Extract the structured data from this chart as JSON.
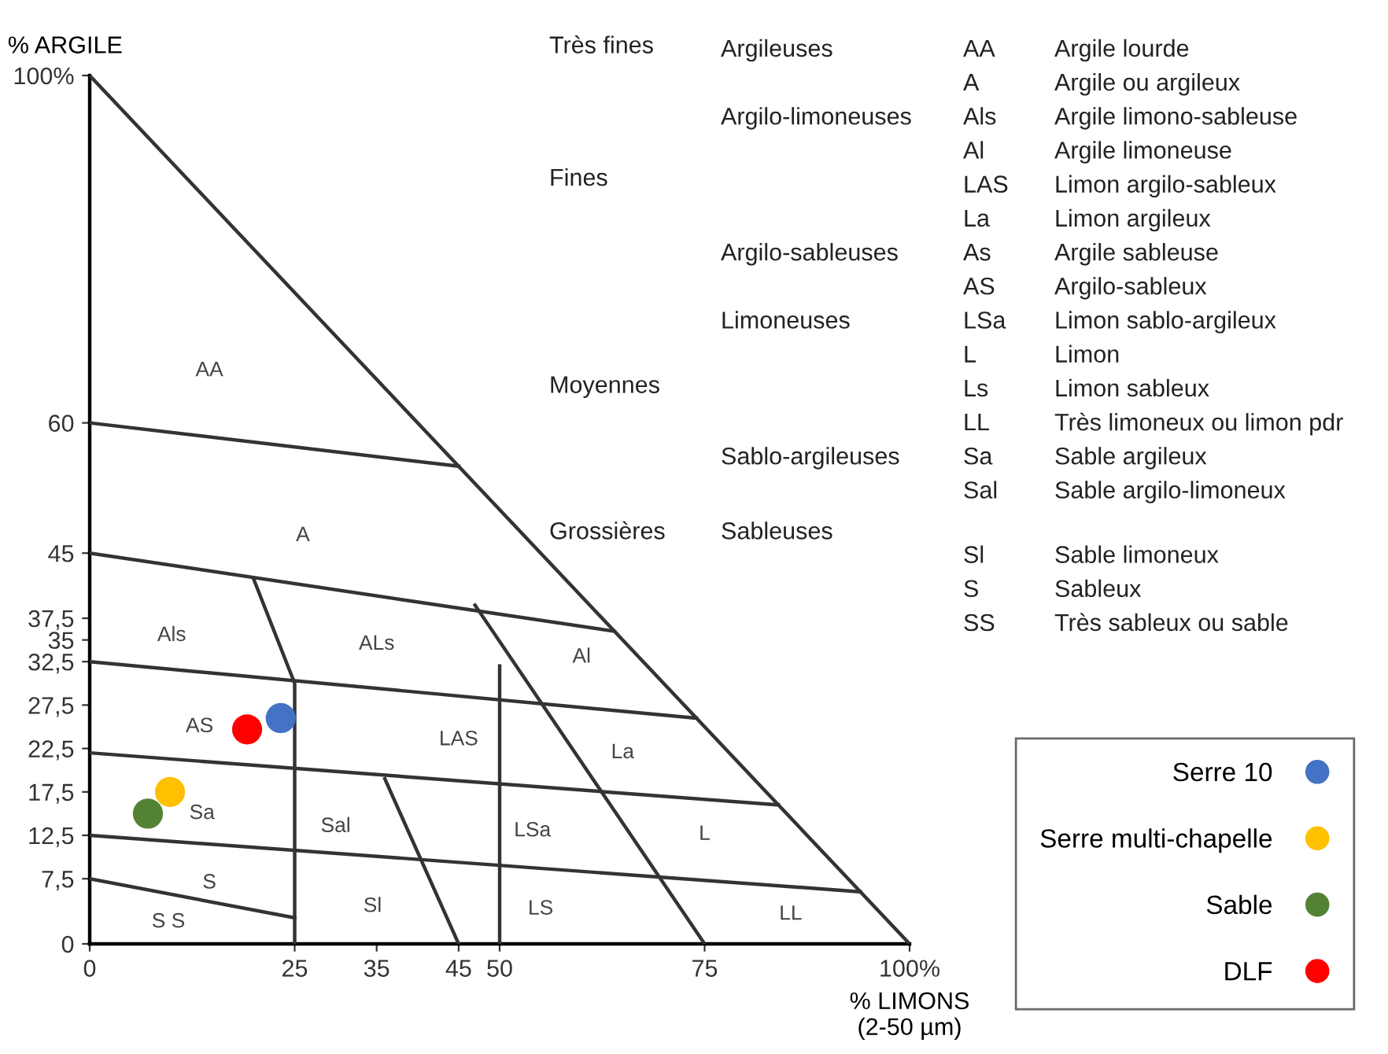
{
  "chart_data": {
    "type": "scatter",
    "xlabel": "% LIMONS\n(2-50 µm)",
    "ylabel": "% ARGILE",
    "xlim": [
      0,
      100
    ],
    "ylim": [
      0,
      100
    ],
    "xticks": [
      0,
      25,
      35,
      45,
      50,
      75,
      {
        "value": 100,
        "label": "100%"
      }
    ],
    "yticks": [
      0,
      {
        "value": 7.5,
        "label": "7,5"
      },
      {
        "value": 12.5,
        "label": "12,5"
      },
      {
        "value": 17.5,
        "label": "17,5"
      },
      {
        "value": 22.5,
        "label": "22,5"
      },
      {
        "value": 27.5,
        "label": "27,5"
      },
      {
        "value": 32.5,
        "label": "32,5"
      },
      35,
      {
        "value": 37.5,
        "label": "37,5"
      },
      45,
      60,
      {
        "value": 100,
        "label": "100%"
      }
    ],
    "grid": false,
    "legend": "bottom right",
    "series": [
      {
        "name": "Serre 10",
        "color": "#4472c4",
        "marker": "circle",
        "x": [
          23.3
        ],
        "values": [
          26
        ]
      },
      {
        "name": "Serre multi-chapelle",
        "color": "#ffc000",
        "marker": "circle",
        "x": [
          9.8
        ],
        "values": [
          17.5
        ]
      },
      {
        "name": "Sable",
        "color": "#548235",
        "marker": "circle",
        "x": [
          7.1
        ],
        "values": [
          15
        ]
      },
      {
        "name": "DLF",
        "color": "#ff0000",
        "marker": "circle",
        "x": [
          19.2
        ],
        "values": [
          24.7
        ]
      },
      {
        "type": "line",
        "color": "#333333",
        "x": [
          0,
          100
        ],
        "values": [
          100,
          0
        ]
      },
      {
        "type": "line",
        "color": "#333333",
        "x": [
          0,
          45
        ],
        "values": [
          60,
          55
        ]
      },
      {
        "type": "line",
        "color": "#333333",
        "x": [
          0,
          64
        ],
        "values": [
          45,
          36
        ]
      },
      {
        "type": "line",
        "color": "#333333",
        "x": [
          20,
          25,
          25
        ],
        "values": [
          42,
          30,
          0
        ]
      },
      {
        "type": "line",
        "color": "#333333",
        "x": [
          0,
          74
        ],
        "values": [
          32.5,
          26
        ]
      },
      {
        "type": "line",
        "color": "#333333",
        "x": [
          47,
          75
        ],
        "values": [
          39,
          0
        ]
      },
      {
        "type": "line",
        "color": "#333333",
        "x": [
          0,
          84
        ],
        "values": [
          22,
          16
        ]
      },
      {
        "type": "line",
        "color": "#333333",
        "x": [
          36,
          45
        ],
        "values": [
          19,
          0
        ]
      },
      {
        "type": "line",
        "color": "#333333",
        "x": [
          0,
          94
        ],
        "values": [
          12.5,
          6
        ]
      },
      {
        "type": "line",
        "color": "#333333",
        "x": [
          0,
          25
        ],
        "values": [
          7.5,
          3
        ]
      },
      {
        "type": "line",
        "color": "#333333",
        "x": [
          50,
          50
        ],
        "values": [
          0,
          32
        ]
      }
    ],
    "annotations": [
      "AA",
      "A",
      "Als",
      "ALs",
      "Al",
      "AS",
      "LAS",
      "La",
      "Sa",
      "Sal",
      "LSa",
      "L",
      "S",
      "S S",
      "Sl",
      "LS",
      "LL",
      "Très fines",
      "Argileuses",
      "AA",
      "Argile lourde",
      "A",
      "Argile ou argileux",
      "Argilo-limoneuses",
      "Als",
      "Argile limono-sableuse",
      "Fines",
      "Al",
      "Argile limoneuse",
      "LAS",
      "Limon argilo-sableux",
      "La",
      "Limon argileux",
      "Argilo-sableuses",
      "As",
      "Argile sableuse",
      "AS",
      "Argilo-sableux",
      "Limoneuses",
      "LSa",
      "Limon sablo-argileux",
      "L",
      "Limon",
      "Moyennes",
      "Ls",
      "Limon sableux",
      "LL",
      "Très limoneux ou limon pdr",
      "Sablo-argileuses",
      "Sa",
      "Sable argileux",
      "Sal",
      "Sable argilo-limoneux",
      "Grossières",
      "Sableuses",
      "Sl",
      "Sable limoneux",
      "S",
      "Sableux",
      "SS",
      "Très sableux ou sable"
    ]
  }
}
